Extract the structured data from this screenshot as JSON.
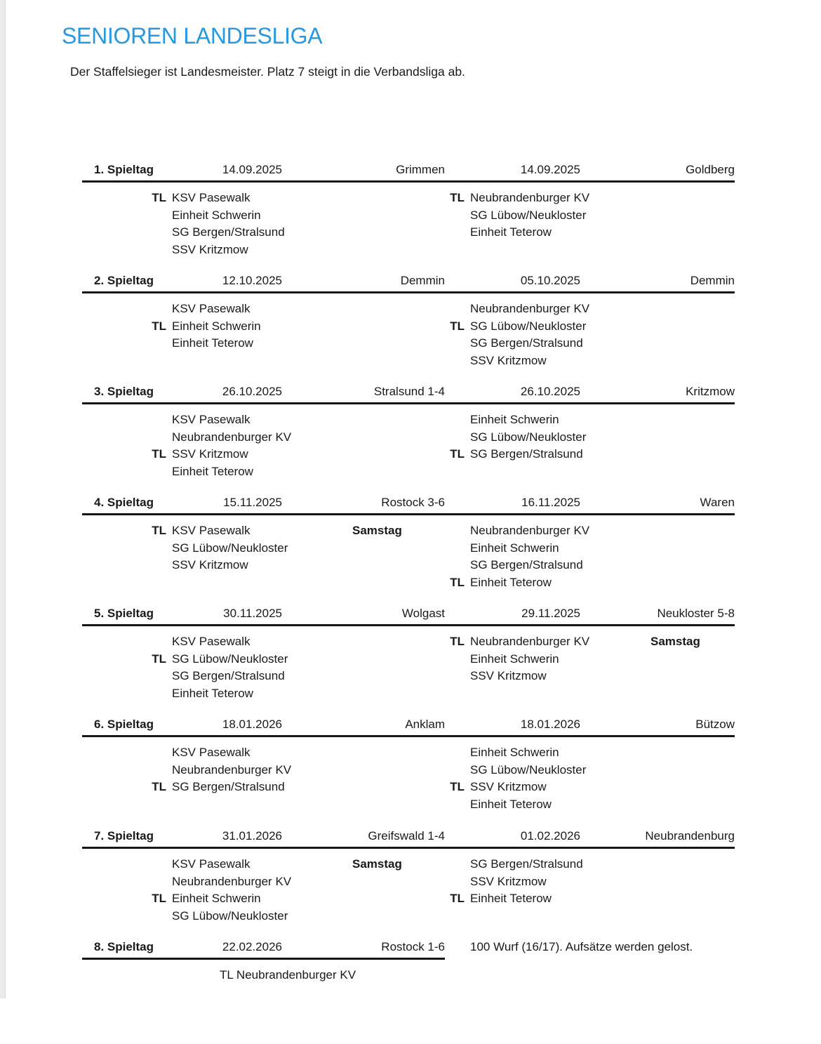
{
  "document": {
    "title": "SENIOREN LANDESLIGA",
    "subtitle": "Der Staffelsieger ist Landesmeister. Platz 7 steigt in die Verbandsliga ab.",
    "accent_color": "#2798e2"
  },
  "schedule": {
    "matchdays": [
      {
        "label": "1. Spieltag",
        "left_date": "14.09.2025",
        "left_venue": "Grimmen",
        "right_date": "14.09.2025",
        "right_venue": "Goldberg",
        "left_teams": [
          {
            "tl": "TL",
            "name": "KSV Pasewalk"
          },
          {
            "tl": "",
            "name": "Einheit Schwerin"
          },
          {
            "tl": "",
            "name": "SG Bergen/Stralsund"
          },
          {
            "tl": "",
            "name": "SSV Kritzmow"
          }
        ],
        "right_teams": [
          {
            "tl": "TL",
            "name": "Neubrandenburger KV"
          },
          {
            "tl": "",
            "name": "SG Lübow/Neukloster"
          },
          {
            "tl": "",
            "name": "Einheit Teterow"
          }
        ],
        "mid_note": "",
        "far_note": "",
        "info_note": "",
        "footer_line": ""
      },
      {
        "label": "2. Spieltag",
        "left_date": "12.10.2025",
        "left_venue": "Demmin",
        "right_date": "05.10.2025",
        "right_venue": "Demmin",
        "left_teams": [
          {
            "tl": "",
            "name": "KSV Pasewalk"
          },
          {
            "tl": "TL",
            "name": "Einheit Schwerin"
          },
          {
            "tl": "",
            "name": "Einheit Teterow"
          }
        ],
        "right_teams": [
          {
            "tl": "",
            "name": "Neubrandenburger KV"
          },
          {
            "tl": "TL",
            "name": "SG Lübow/Neukloster"
          },
          {
            "tl": "",
            "name": "SG Bergen/Stralsund"
          },
          {
            "tl": "",
            "name": "SSV Kritzmow"
          }
        ],
        "mid_note": "",
        "far_note": "",
        "info_note": "",
        "footer_line": ""
      },
      {
        "label": "3. Spieltag",
        "left_date": "26.10.2025",
        "left_venue": "Stralsund 1-4",
        "right_date": "26.10.2025",
        "right_venue": "Kritzmow",
        "left_teams": [
          {
            "tl": "",
            "name": "KSV Pasewalk"
          },
          {
            "tl": "",
            "name": "Neubrandenburger KV"
          },
          {
            "tl": "TL",
            "name": "SSV Kritzmow"
          },
          {
            "tl": "",
            "name": "Einheit Teterow"
          }
        ],
        "right_teams": [
          {
            "tl": "",
            "name": "Einheit Schwerin"
          },
          {
            "tl": "",
            "name": "SG Lübow/Neukloster"
          },
          {
            "tl": "TL",
            "name": "SG Bergen/Stralsund"
          }
        ],
        "mid_note": "",
        "far_note": "",
        "info_note": "",
        "footer_line": ""
      },
      {
        "label": "4. Spieltag",
        "left_date": "15.11.2025",
        "left_venue": "Rostock 3-6",
        "right_date": "16.11.2025",
        "right_venue": "Waren",
        "left_teams": [
          {
            "tl": "TL",
            "name": "KSV Pasewalk"
          },
          {
            "tl": "",
            "name": "SG Lübow/Neukloster"
          },
          {
            "tl": "",
            "name": "SSV Kritzmow"
          }
        ],
        "right_teams": [
          {
            "tl": "",
            "name": "Neubrandenburger KV"
          },
          {
            "tl": "",
            "name": "Einheit Schwerin"
          },
          {
            "tl": "",
            "name": "SG Bergen/Stralsund"
          },
          {
            "tl": "TL",
            "name": "Einheit Teterow"
          }
        ],
        "mid_note": "Samstag",
        "far_note": "",
        "info_note": "",
        "footer_line": ""
      },
      {
        "label": "5. Spieltag",
        "left_date": "30.11.2025",
        "left_venue": "Wolgast",
        "right_date": "29.11.2025",
        "right_venue": "Neukloster 5-8",
        "left_teams": [
          {
            "tl": "",
            "name": "KSV Pasewalk"
          },
          {
            "tl": "TL",
            "name": "SG Lübow/Neukloster"
          },
          {
            "tl": "",
            "name": "SG Bergen/Stralsund"
          },
          {
            "tl": "",
            "name": "Einheit Teterow"
          }
        ],
        "right_teams": [
          {
            "tl": "TL",
            "name": "Neubrandenburger KV"
          },
          {
            "tl": "",
            "name": "Einheit Schwerin"
          },
          {
            "tl": "",
            "name": "SSV Kritzmow"
          }
        ],
        "mid_note": "",
        "far_note": "Samstag",
        "info_note": "",
        "footer_line": ""
      },
      {
        "label": "6. Spieltag",
        "left_date": "18.01.2026",
        "left_venue": "Anklam",
        "right_date": "18.01.2026",
        "right_venue": "Bützow",
        "left_teams": [
          {
            "tl": "",
            "name": "KSV Pasewalk"
          },
          {
            "tl": "",
            "name": "Neubrandenburger KV"
          },
          {
            "tl": "TL",
            "name": "SG Bergen/Stralsund"
          }
        ],
        "right_teams": [
          {
            "tl": "",
            "name": "Einheit Schwerin"
          },
          {
            "tl": "",
            "name": "SG Lübow/Neukloster"
          },
          {
            "tl": "TL",
            "name": "SSV Kritzmow"
          },
          {
            "tl": "",
            "name": "Einheit Teterow"
          }
        ],
        "mid_note": "",
        "far_note": "",
        "info_note": "",
        "footer_line": ""
      },
      {
        "label": "7. Spieltag",
        "left_date": "31.01.2026",
        "left_venue": "Greifswald 1-4",
        "right_date": "01.02.2026",
        "right_venue": "Neubrandenburg",
        "left_teams": [
          {
            "tl": "",
            "name": "KSV Pasewalk"
          },
          {
            "tl": "",
            "name": "Neubrandenburger KV"
          },
          {
            "tl": "TL",
            "name": "Einheit Schwerin"
          },
          {
            "tl": "",
            "name": "SG Lübow/Neukloster"
          }
        ],
        "right_teams": [
          {
            "tl": "",
            "name": "SG Bergen/Stralsund"
          },
          {
            "tl": "",
            "name": "SSV Kritzmow"
          },
          {
            "tl": "TL",
            "name": "Einheit Teterow"
          }
        ],
        "mid_note": "Samstag",
        "far_note": "",
        "info_note": "",
        "footer_line": ""
      },
      {
        "label": "8. Spieltag",
        "left_date": "22.02.2026",
        "left_venue": "Rostock 1-6",
        "right_date": "",
        "right_venue": "",
        "left_teams": [],
        "right_teams": [],
        "mid_note": "",
        "far_note": "",
        "info_note": "100 Wurf (16/17). Aufsätze werden gelost.",
        "footer_line": "TL Neubrandenburger KV"
      }
    ]
  }
}
